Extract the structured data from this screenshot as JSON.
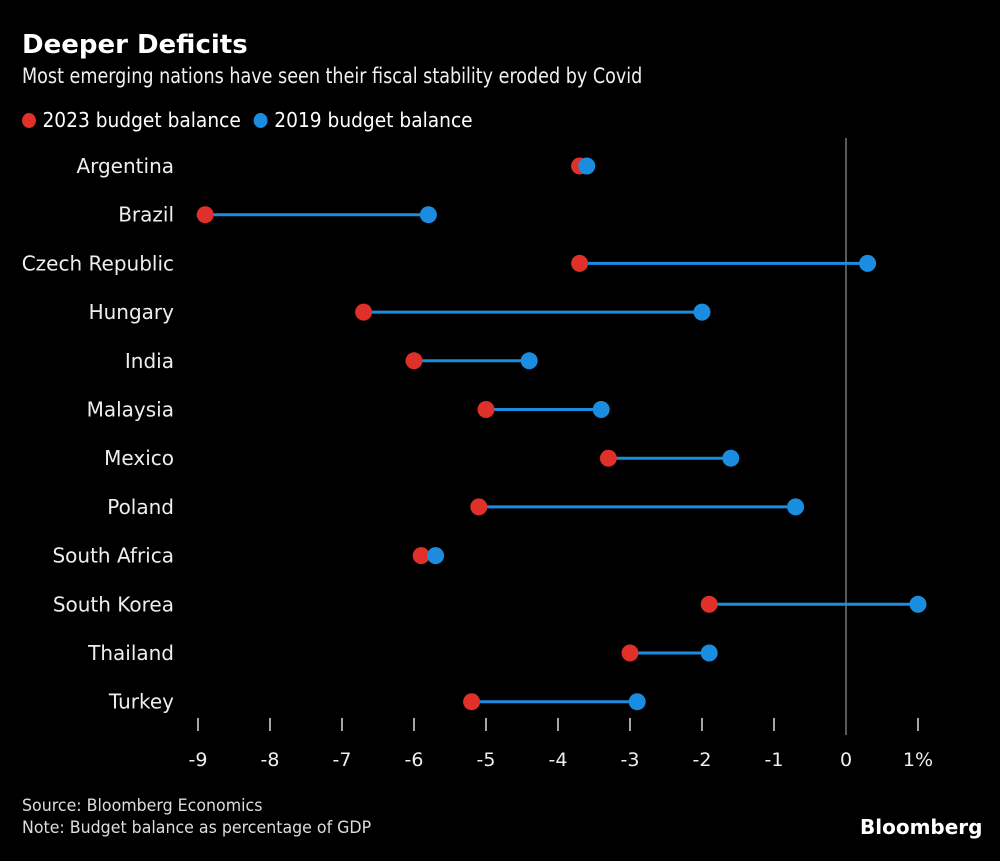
{
  "chart_data": {
    "type": "dumbbell",
    "title": "Deeper Deficits",
    "subtitle": "Most emerging nations have seen their fiscal stability eroded by Covid",
    "xlabel": "",
    "ylabel": "",
    "xlim": [
      -9,
      1
    ],
    "x_ticks": [
      -9,
      -8,
      -7,
      -6,
      -5,
      -4,
      -3,
      -2,
      -1,
      0,
      1
    ],
    "x_tick_labels": [
      "-9",
      "-8",
      "-7",
      "-6",
      "-5",
      "-4",
      "-3",
      "-2",
      "-1",
      "0",
      "1%"
    ],
    "legend": {
      "position": "top-left",
      "entries": [
        {
          "name": "2023 budget balance",
          "color": "#e0302a"
        },
        {
          "name": "2019 budget balance",
          "color": "#1a8de0"
        }
      ]
    },
    "categories": [
      "Argentina",
      "Brazil",
      "Czech Republic",
      "Hungary",
      "India",
      "Malaysia",
      "Mexico",
      "Poland",
      "South Africa",
      "South Korea",
      "Thailand",
      "Turkey"
    ],
    "series": [
      {
        "name": "2023 budget balance",
        "color": "#e0302a",
        "values": [
          -3.7,
          -8.9,
          -3.7,
          -6.7,
          -6.0,
          -5.0,
          -3.3,
          -5.1,
          -5.9,
          -1.9,
          -3.0,
          -5.2
        ]
      },
      {
        "name": "2019 budget balance",
        "color": "#1a8de0",
        "values": [
          -3.6,
          -5.8,
          0.3,
          -2.0,
          -4.4,
          -3.4,
          -1.6,
          -0.7,
          -5.7,
          1.0,
          -1.9,
          -2.9
        ]
      }
    ],
    "zero_line": 0
  },
  "footer": {
    "source": "Source: Bloomberg Economics",
    "note": "Note: Budget balance as percentage of GDP",
    "brand": "Bloomberg"
  }
}
